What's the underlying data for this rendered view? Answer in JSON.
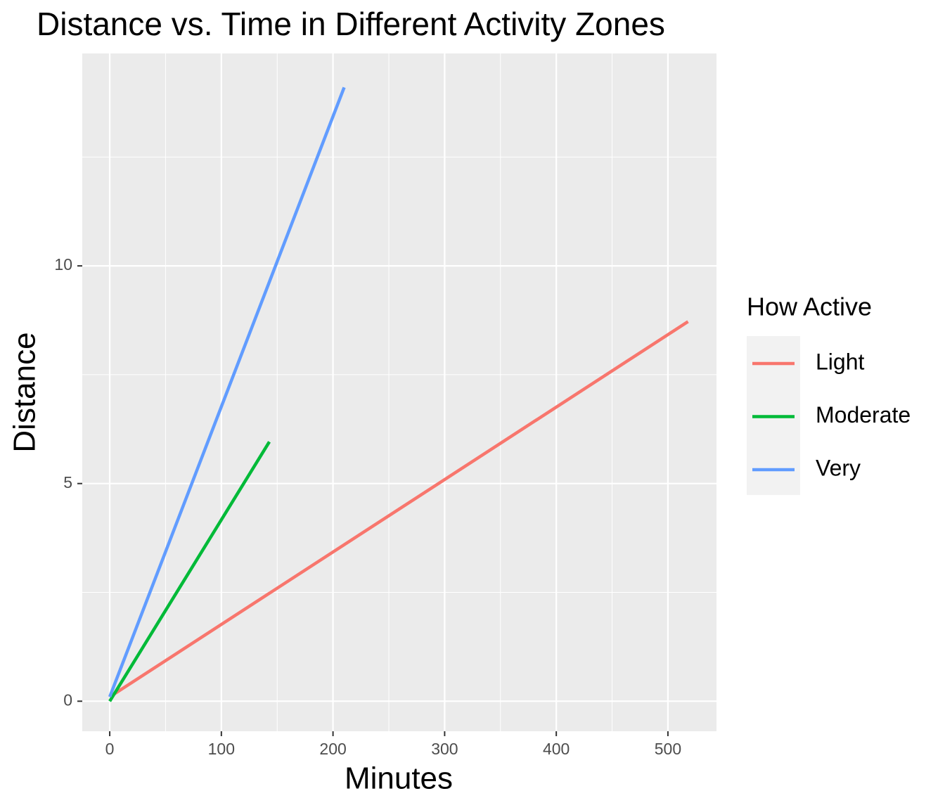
{
  "chart_data": {
    "type": "line",
    "title": "Distance vs. Time in Different Activity Zones",
    "x_label": "Minutes",
    "y_label": "Distance",
    "legend_title": "How Active",
    "legend": "right",
    "series": [
      {
        "name": "Light",
        "color": "#f8766d",
        "x": [
          0,
          518
        ],
        "values": [
          0.1,
          8.72
        ]
      },
      {
        "name": "Moderate",
        "color": "#00ba38",
        "x": [
          0,
          143
        ],
        "values": [
          0,
          5.96
        ]
      },
      {
        "name": "Very",
        "color": "#619cff",
        "x": [
          0,
          210
        ],
        "values": [
          0.1,
          14.1
        ]
      }
    ],
    "xlim": [
      -24.6,
      543.5
    ],
    "xticks": [
      0,
      100,
      200,
      300,
      400,
      500
    ],
    "ylim": [
      -0.69,
      14.88
    ],
    "yticks": [
      0,
      5,
      10
    ],
    "x_minor_grid": [
      50,
      150,
      250,
      350,
      450
    ],
    "y_minor_grid": [
      2.5,
      7.5,
      12.5
    ],
    "grid": true
  }
}
